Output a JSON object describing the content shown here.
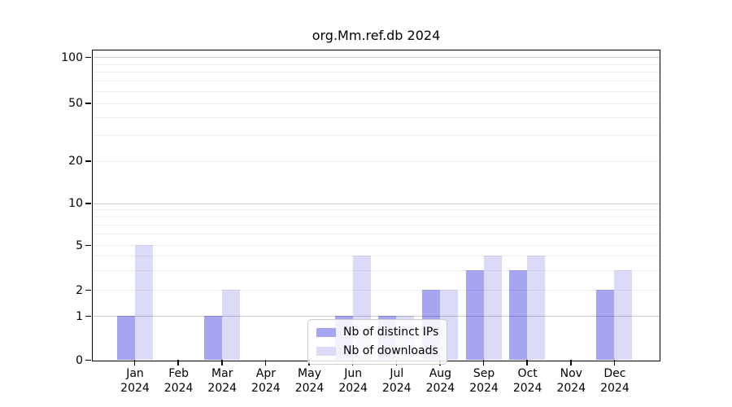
{
  "chart_data": {
    "type": "bar",
    "title": "org.Mm.ref.db 2024",
    "categories": [
      "Jan",
      "Feb",
      "Mar",
      "Apr",
      "May",
      "Jun",
      "Jul",
      "Aug",
      "Sep",
      "Oct",
      "Nov",
      "Dec"
    ],
    "year": "2024",
    "series": [
      {
        "name": "Nb of distinct IPs",
        "color": "#a5a5f2",
        "values": [
          1,
          0,
          1,
          0,
          0,
          1,
          1,
          2,
          3,
          3,
          0,
          2
        ]
      },
      {
        "name": "Nb of downloads",
        "color": "#dbdbf8",
        "values": [
          5,
          0,
          2,
          0,
          0,
          4,
          1,
          2,
          4,
          4,
          0,
          3
        ]
      }
    ],
    "y_axis": {
      "scale": "symlog",
      "ticks": [
        0,
        1,
        2,
        5,
        10,
        20,
        50,
        100
      ],
      "major_gridlines": [
        1,
        10,
        100
      ],
      "minor_gridlines": [
        2,
        3,
        4,
        5,
        6,
        7,
        8,
        9,
        20,
        30,
        40,
        50,
        60,
        70,
        80,
        90
      ],
      "ylim": [
        0,
        113
      ]
    },
    "x_axis": {
      "tick_label_line2": "2024"
    },
    "legend": {
      "position": "bottom-center"
    },
    "colors": {
      "bar_distinct_ips": "#a5a5f2",
      "bar_downloads": "#dbdbf8",
      "axis": "#000000",
      "major_grid": "#c9c9c9",
      "minor_grid": "#ededed",
      "legend_border": "#cccccc"
    }
  }
}
